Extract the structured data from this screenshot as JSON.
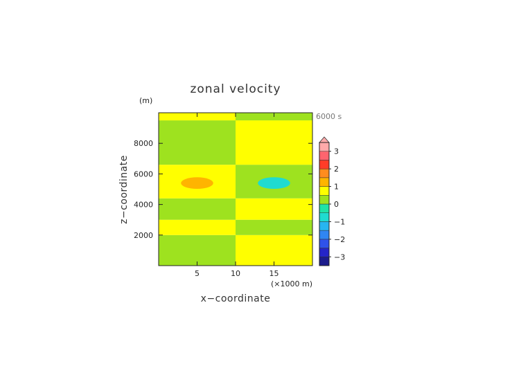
{
  "chart_data": {
    "type": "heatmap",
    "title": "zonal velocity",
    "xlabel": "x−coordinate",
    "ylabel": "z−coordinate",
    "x_unit": "(×1000 m)",
    "y_unit": "(m)",
    "time_label": "6000 s",
    "xlim": [
      0,
      20
    ],
    "ylim": [
      0,
      10000
    ],
    "x_ticks": [
      5,
      10,
      15
    ],
    "y_ticks": [
      2000,
      4000,
      6000,
      8000
    ],
    "colorbar": {
      "levels": [
        -3.5,
        -3,
        -2.5,
        -2,
        -1.5,
        -1,
        -0.5,
        0,
        0.5,
        1,
        1.5,
        2,
        2.5,
        3,
        3.5
      ],
      "colors": [
        "#1c1c8c",
        "#2525c8",
        "#2f52ea",
        "#2f86f2",
        "#27b5f0",
        "#1fdbd0",
        "#1fe3a6",
        "#9ee21f",
        "#ffff00",
        "#ffb400",
        "#ff8c1e",
        "#ff3c28",
        "#ff646e",
        "#ffaaaa"
      ],
      "tick_labels": [
        "3",
        "2",
        "1",
        "0",
        "−1",
        "−2",
        "−3"
      ],
      "tick_values": [
        3,
        2,
        1,
        0,
        -1,
        -2,
        -3
      ],
      "extend": "max"
    },
    "bands": [
      {
        "z": [
          0,
          2000
        ],
        "left_value": 0.2,
        "right_value": 0.7
      },
      {
        "z": [
          2000,
          3000
        ],
        "left_value": 0.7,
        "right_value": 0.2
      },
      {
        "z": [
          3000,
          4400
        ],
        "left_value": 0.2,
        "right_value": 0.7
      },
      {
        "z": [
          4400,
          6600
        ],
        "left_value": 0.7,
        "right_value": 0.2
      },
      {
        "z": [
          6600,
          9500
        ],
        "left_value": 0.2,
        "right_value": 0.7
      },
      {
        "z": [
          9500,
          10000
        ],
        "left_value": 0.7,
        "right_value": 0.2
      }
    ],
    "anomalies": [
      {
        "x": 5,
        "z": 5400,
        "value": 1.1
      },
      {
        "x": 15,
        "z": 5400,
        "value": -0.8
      }
    ]
  }
}
